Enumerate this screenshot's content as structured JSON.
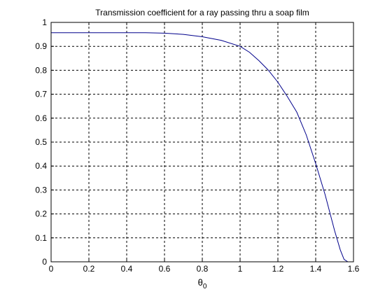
{
  "chart_data": {
    "type": "line",
    "title": "Transmission coefficient for a ray passing thru a soap film",
    "xlabel": "θ",
    "xlabel_subscript": "0",
    "ylabel": "",
    "xlim": [
      0,
      1.6
    ],
    "ylim": [
      0,
      1
    ],
    "xticks": [
      "0",
      "0.2",
      "0.4",
      "0.6",
      "0.8",
      "1",
      "1.2",
      "1.4",
      "1.6"
    ],
    "yticks": [
      "0",
      "0.1",
      "0.2",
      "0.3",
      "0.4",
      "0.5",
      "0.6",
      "0.7",
      "0.8",
      "0.9",
      "1"
    ],
    "grid": true,
    "line_color": "#00008b",
    "series": [
      {
        "x": [
          0,
          0.1,
          0.2,
          0.3,
          0.4,
          0.5,
          0.6,
          0.7,
          0.8,
          0.9,
          1.0,
          1.05,
          1.1,
          1.15,
          1.2,
          1.25,
          1.3,
          1.35,
          1.4,
          1.45,
          1.5,
          1.53,
          1.55,
          1.57
        ],
        "y": [
          0.957,
          0.957,
          0.957,
          0.957,
          0.957,
          0.957,
          0.955,
          0.95,
          0.94,
          0.925,
          0.9,
          0.875,
          0.84,
          0.8,
          0.75,
          0.69,
          0.625,
          0.53,
          0.41,
          0.28,
          0.13,
          0.05,
          0.01,
          0.0
        ]
      }
    ]
  }
}
